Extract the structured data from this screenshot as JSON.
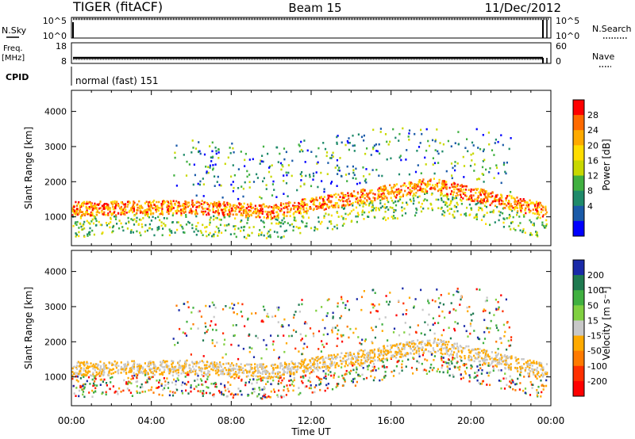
{
  "header": {
    "radar": "TIGER (fitACF)",
    "beam": "Beam 15",
    "date": "11/Dec/2012"
  },
  "info_panels": {
    "nsky_label": "N.Sky",
    "nsearch_label": "N.Search",
    "noise_ticks_left": [
      "10^5",
      "10^0"
    ],
    "noise_ticks_right": [
      "10^5",
      "10^0"
    ],
    "freq_label_1": "Freq.",
    "freq_label_2": "[MHz]",
    "freq_ticks": [
      "18",
      "8"
    ],
    "nave_label": "Nave",
    "nave_ticks": [
      "60",
      "0"
    ],
    "cpid_label": "CPID",
    "cpid_value": "normal (fast) 151"
  },
  "chart_data": [
    {
      "type": "heatmap",
      "name": "power",
      "ylabel": "Slant Range [km]",
      "xlabel": "",
      "x_ticks": [
        "00:00",
        "04:00",
        "08:00",
        "12:00",
        "16:00",
        "20:00",
        "00:00"
      ],
      "y_ticks": [
        1000,
        2000,
        3000,
        4000
      ],
      "xlim": [
        0,
        24
      ],
      "ylim": [
        180,
        4600
      ],
      "colorbar": {
        "label": "Power [dB]",
        "ticks": [
          "28",
          "24",
          "20",
          "16",
          "12",
          "8",
          "4"
        ],
        "colors": [
          "#ff0000",
          "#ff6a00",
          "#ffaa00",
          "#ffdd00",
          "#c8d800",
          "#40b040",
          "#1f8a6a",
          "#1a5aa8",
          "#0000ff"
        ]
      }
    },
    {
      "type": "heatmap",
      "name": "velocity",
      "ylabel": "Slant Range [km]",
      "xlabel": "Time UT",
      "x_ticks": [
        "00:00",
        "04:00",
        "08:00",
        "12:00",
        "16:00",
        "20:00",
        "00:00"
      ],
      "y_ticks": [
        1000,
        2000,
        3000,
        4000
      ],
      "xlim": [
        0,
        24
      ],
      "ylim": [
        180,
        4600
      ],
      "colorbar": {
        "label": "Velocity [m s⁻¹]",
        "ticks": [
          "200",
          "100",
          "50",
          "15",
          "-15",
          "-50",
          "-100",
          "-200"
        ],
        "colors": [
          "#1a2aa8",
          "#1f7a50",
          "#40b040",
          "#80d040",
          "#c8c8c8",
          "#ffaa00",
          "#ff7a00",
          "#ff3000",
          "#ff0000"
        ]
      }
    }
  ]
}
